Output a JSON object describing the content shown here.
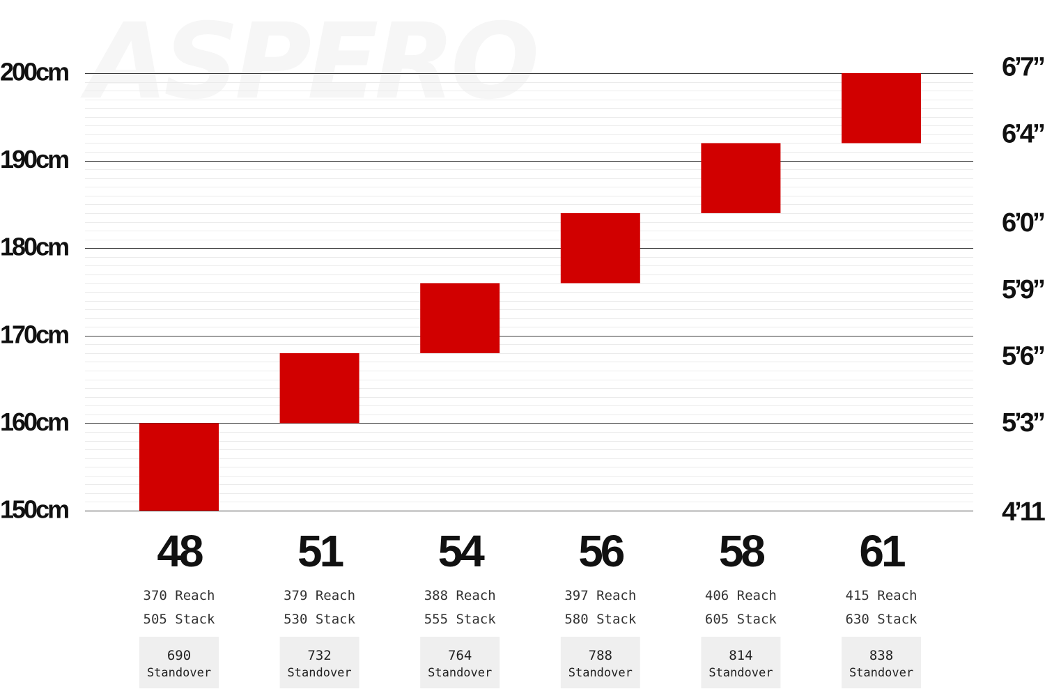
{
  "watermark": "ASPERO",
  "chart_data": {
    "type": "bar",
    "title": "",
    "xlabel": "",
    "ylabel": "",
    "ylim": [
      150,
      200
    ],
    "grid": true,
    "y_ticks_left": [
      {
        "value": 200,
        "label": "200cm"
      },
      {
        "value": 190,
        "label": "190cm"
      },
      {
        "value": 180,
        "label": "180cm"
      },
      {
        "value": 170,
        "label": "170cm"
      },
      {
        "value": 160,
        "label": "160cm"
      },
      {
        "value": 150,
        "label": "150cm"
      }
    ],
    "y_ticks_right": [
      {
        "value": 200.66,
        "label": "6’7”"
      },
      {
        "value": 193.04,
        "label": "6’4”"
      },
      {
        "value": 182.88,
        "label": "6’0”"
      },
      {
        "value": 175.26,
        "label": "5’9”"
      },
      {
        "value": 167.64,
        "label": "5’6”"
      },
      {
        "value": 160.02,
        "label": "5’3”"
      },
      {
        "value": 149.86,
        "label": "4’11”"
      }
    ],
    "colors": {
      "bar": "#d10000"
    },
    "categories": [
      "48",
      "51",
      "54",
      "56",
      "58",
      "61"
    ],
    "rider_height_cm": [
      {
        "size": "48",
        "low": 150,
        "high": 160
      },
      {
        "size": "51",
        "low": 160,
        "high": 168
      },
      {
        "size": "54",
        "low": 168,
        "high": 176
      },
      {
        "size": "56",
        "low": 176,
        "high": 184
      },
      {
        "size": "58",
        "low": 184,
        "high": 192
      },
      {
        "size": "61",
        "low": 192,
        "high": 200
      }
    ],
    "geometry": [
      {
        "reach": "370",
        "reach_label": "Reach",
        "stack": "505",
        "stack_label": "Stack",
        "standover": "690",
        "standover_label": "Standover"
      },
      {
        "reach": "379",
        "reach_label": "Reach",
        "stack": "530",
        "stack_label": "Stack",
        "standover": "732",
        "standover_label": "Standover"
      },
      {
        "reach": "388",
        "reach_label": "Reach",
        "stack": "555",
        "stack_label": "Stack",
        "standover": "764",
        "standover_label": "Standover"
      },
      {
        "reach": "397",
        "reach_label": "Reach",
        "stack": "580",
        "stack_label": "Stack",
        "standover": "788",
        "standover_label": "Standover"
      },
      {
        "reach": "406",
        "reach_label": "Reach",
        "stack": "605",
        "stack_label": "Stack",
        "standover": "814",
        "standover_label": "Standover"
      },
      {
        "reach": "415",
        "reach_label": "Reach",
        "stack": "630",
        "stack_label": "Stack",
        "standover": "838",
        "standover_label": "Standover"
      }
    ]
  }
}
